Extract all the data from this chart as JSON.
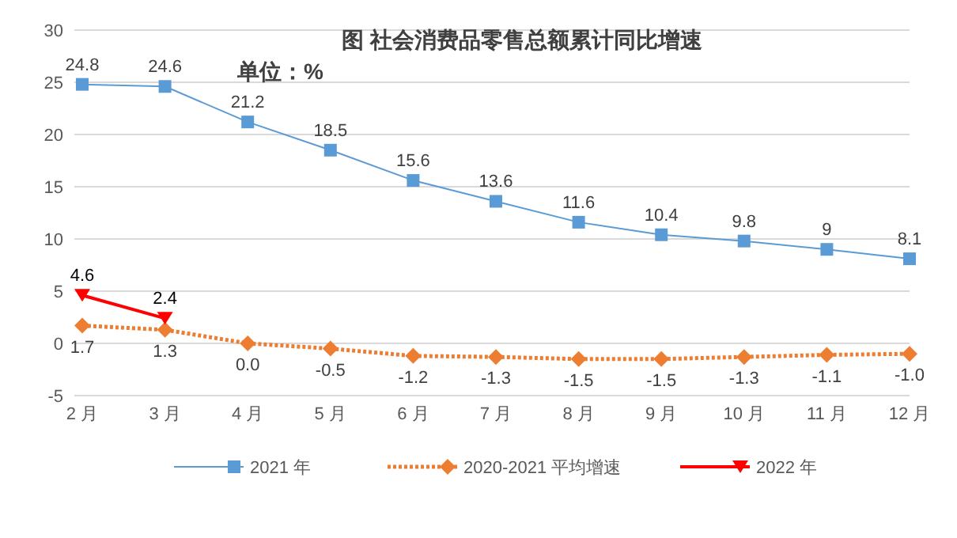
{
  "chart_data": {
    "type": "line",
    "title": "图  社会消费品零售总额累计同比增速",
    "subtitle": "单位：%",
    "categories": [
      "2 月",
      "3 月",
      "4 月",
      "5 月",
      "6 月",
      "7 月",
      "8 月",
      "9 月",
      "10 月",
      "11 月",
      "12 月"
    ],
    "series": [
      {
        "name": "2021 年",
        "color": "#5b9bd5",
        "marker": "square",
        "line_style": "solid",
        "values": [
          24.8,
          24.6,
          21.2,
          18.5,
          15.6,
          13.6,
          11.6,
          10.4,
          9.8,
          9,
          8.1
        ]
      },
      {
        "name": "2020-2021 平均增速",
        "color": "#ed7d31",
        "marker": "diamond",
        "line_style": "dotted",
        "values": [
          1.7,
          1.3,
          0.0,
          -0.5,
          -1.2,
          -1.3,
          -1.5,
          -1.5,
          -1.3,
          -1.1,
          -1.0
        ],
        "value_labels": [
          "1.7",
          "1.3",
          "0.0",
          "-0.5",
          "-1.2",
          "-1.3",
          "-1.5",
          "-1.5",
          "-1.3",
          "-1.1",
          "-1.0"
        ]
      },
      {
        "name": "2022 年",
        "color": "#ff0000",
        "marker": "triangle",
        "line_style": "solid",
        "values": [
          4.6,
          2.4,
          null,
          null,
          null,
          null,
          null,
          null,
          null,
          null,
          null
        ]
      }
    ],
    "ylim": [
      -5,
      30
    ],
    "yticks": [
      -5,
      0,
      5,
      10,
      15,
      20,
      25,
      30
    ],
    "grid": "y",
    "legend": "bottom",
    "data_labels": true
  }
}
